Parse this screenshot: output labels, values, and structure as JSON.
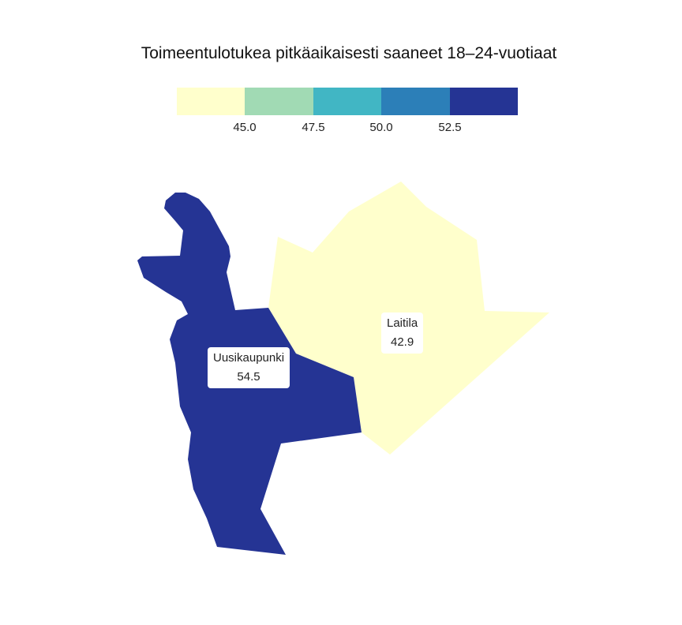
{
  "title": "Toimeentulotukea pitkäaikaisesti saaneet 18–24-vuotiaat",
  "legend": {
    "colors": [
      "#ffffcc",
      "#a1dab4",
      "#41b6c4",
      "#2c7fb8",
      "#253494"
    ],
    "ticks": [
      "45.0",
      "47.5",
      "50.0",
      "52.5"
    ]
  },
  "regions": [
    {
      "name": "Uusikaupunki",
      "value": "54.5",
      "color": "#253494"
    },
    {
      "name": "Laitila",
      "value": "42.9",
      "color": "#ffffcc"
    }
  ]
}
